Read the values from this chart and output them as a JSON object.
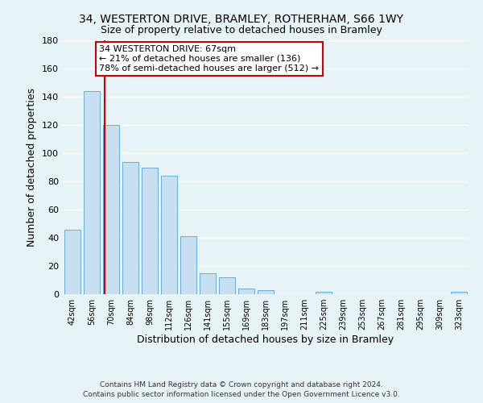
{
  "title": "34, WESTERTON DRIVE, BRAMLEY, ROTHERHAM, S66 1WY",
  "subtitle": "Size of property relative to detached houses in Bramley",
  "xlabel": "Distribution of detached houses by size in Bramley",
  "ylabel": "Number of detached properties",
  "bar_color": "#c8dff0",
  "bar_edge_color": "#6aaed6",
  "bins": [
    "42sqm",
    "56sqm",
    "70sqm",
    "84sqm",
    "98sqm",
    "112sqm",
    "126sqm",
    "141sqm",
    "155sqm",
    "169sqm",
    "183sqm",
    "197sqm",
    "211sqm",
    "225sqm",
    "239sqm",
    "253sqm",
    "267sqm",
    "281sqm",
    "295sqm",
    "309sqm",
    "323sqm"
  ],
  "values": [
    46,
    144,
    120,
    94,
    90,
    84,
    41,
    15,
    12,
    4,
    3,
    0,
    0,
    2,
    0,
    0,
    0,
    0,
    0,
    0,
    2
  ],
  "ylim": [
    0,
    180
  ],
  "yticks": [
    0,
    20,
    40,
    60,
    80,
    100,
    120,
    140,
    160,
    180
  ],
  "annotation_title": "34 WESTERTON DRIVE: 67sqm",
  "annotation_line1": "← 21% of detached houses are smaller (136)",
  "annotation_line2": "78% of semi-detached houses are larger (512) →",
  "annotation_box_facecolor": "#ffffff",
  "annotation_box_edgecolor": "#cc0000",
  "property_line_color": "#cc0000",
  "footer1": "Contains HM Land Registry data © Crown copyright and database right 2024.",
  "footer2": "Contains public sector information licensed under the Open Government Licence v3.0.",
  "grid_color": "#ffffff",
  "bg_color": "#e8f3f8"
}
